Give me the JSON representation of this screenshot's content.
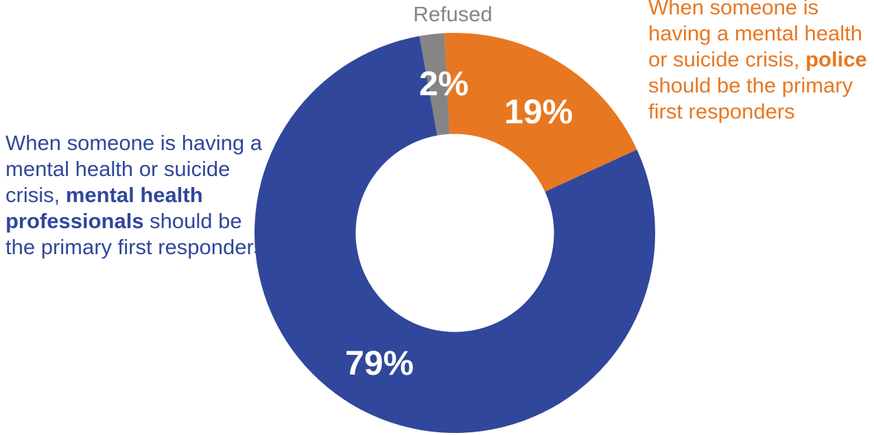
{
  "colors": {
    "mental_health": "#31479B",
    "police": "#E87722",
    "refused": "#858585",
    "data_label": "#FFFFFF"
  },
  "chart_data": {
    "type": "pie",
    "variant": "donut",
    "start_angle_deg": -3,
    "inner_radius_ratio": 0.495,
    "slices": [
      {
        "name": "police",
        "value": 19,
        "label": "19%",
        "color": "#E87722"
      },
      {
        "name": "mental_health",
        "value": 79,
        "label": "79%",
        "color": "#31479B"
      },
      {
        "name": "refused",
        "value": 2,
        "label": "2%",
        "color": "#858585"
      }
    ]
  },
  "legend": {
    "left": {
      "pre": "When someone is having a mental health or suicide crisis, ",
      "bold": "mental health professionals",
      "post": " should be the primary first responders"
    },
    "right": {
      "pre": "When someone is having a mental health or suicide crisis, ",
      "bold": "police",
      "post": " should be the primary first responders"
    },
    "refused": "Refused"
  }
}
